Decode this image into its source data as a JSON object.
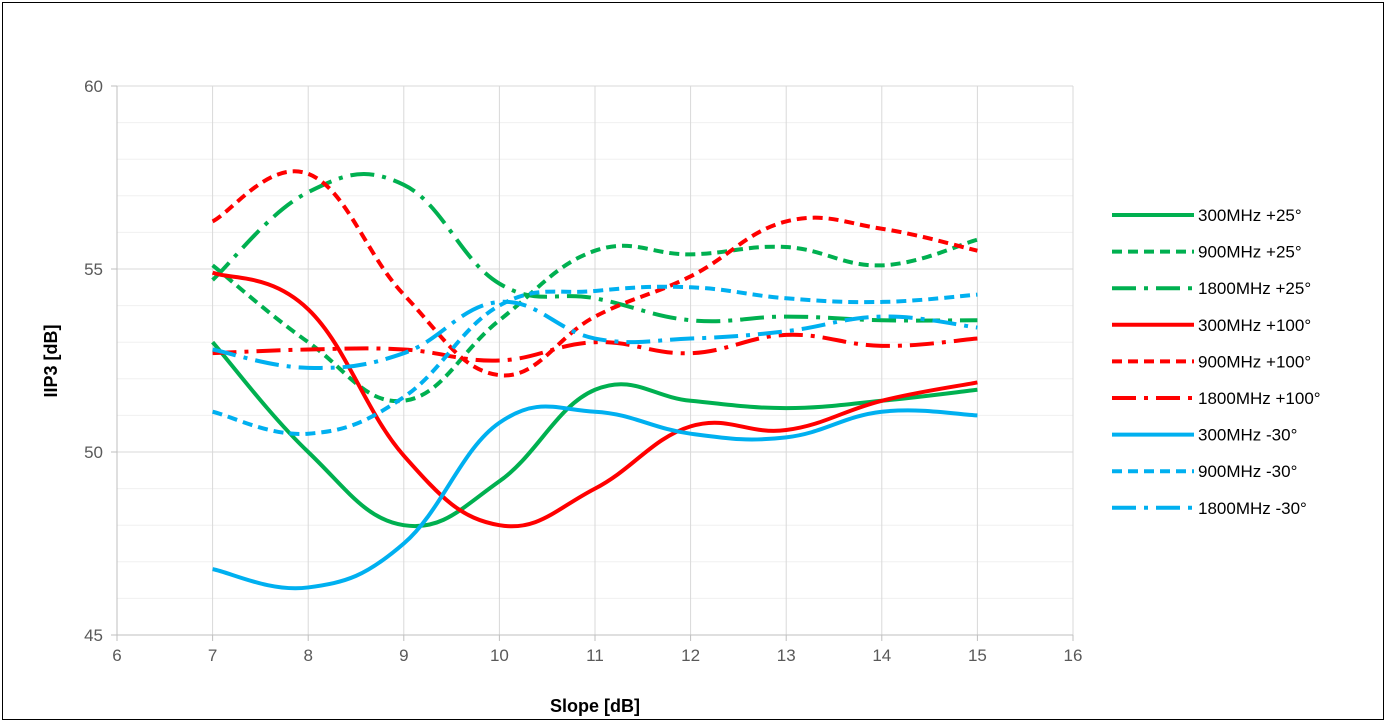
{
  "chart_data": {
    "type": "line",
    "title": "",
    "xlabel": "Slope [dB]",
    "ylabel": "IIP3 [dB]",
    "xlim": [
      6,
      16
    ],
    "ylim": [
      45,
      60
    ],
    "x_ticks": [
      6,
      7,
      8,
      9,
      10,
      11,
      12,
      13,
      14,
      15,
      16
    ],
    "y_ticks": [
      45,
      50,
      55,
      60
    ],
    "grid": true,
    "legend_position": "right",
    "x": [
      7,
      8,
      9,
      10,
      11,
      12,
      13,
      14,
      15
    ],
    "series": [
      {
        "name": "300MHz +25°",
        "color": "#00B050",
        "dash": "solid",
        "values": [
          53.0,
          50.0,
          48.0,
          49.2,
          51.7,
          51.4,
          51.2,
          51.4,
          51.7
        ]
      },
      {
        "name": "900MHz +25°",
        "color": "#00B050",
        "dash": "dash",
        "values": [
          55.1,
          53.0,
          51.4,
          53.6,
          55.5,
          55.4,
          55.6,
          55.1,
          55.8
        ]
      },
      {
        "name": "1800MHz +25°",
        "color": "#00B050",
        "dash": "longdash",
        "values": [
          54.7,
          57.1,
          57.3,
          54.6,
          54.2,
          53.6,
          53.7,
          53.6,
          53.6
        ]
      },
      {
        "name": "300MHz +100°",
        "color": "#FF0000",
        "dash": "solid",
        "values": [
          54.9,
          53.9,
          49.9,
          48.0,
          49.0,
          50.7,
          50.6,
          51.4,
          51.9
        ]
      },
      {
        "name": "900MHz +100°",
        "color": "#FF0000",
        "dash": "dash",
        "values": [
          56.3,
          57.6,
          54.3,
          52.1,
          53.7,
          54.8,
          56.3,
          56.1,
          55.5
        ]
      },
      {
        "name": "1800MHz +100°",
        "color": "#FF0000",
        "dash": "longdash",
        "values": [
          52.7,
          52.8,
          52.8,
          52.5,
          53.0,
          52.7,
          53.2,
          52.9,
          53.1
        ]
      },
      {
        "name": "300MHz -30°",
        "color": "#00B0F0",
        "dash": "solid",
        "values": [
          46.8,
          46.3,
          47.5,
          50.8,
          51.1,
          50.5,
          50.4,
          51.1,
          51.0
        ]
      },
      {
        "name": "900MHz -30°",
        "color": "#00B0F0",
        "dash": "dash",
        "values": [
          51.1,
          50.5,
          51.5,
          54.0,
          54.4,
          54.5,
          54.2,
          54.1,
          54.3
        ]
      },
      {
        "name": "1800MHz -30°",
        "color": "#00B0F0",
        "dash": "longdash",
        "values": [
          52.8,
          52.3,
          52.7,
          54.1,
          53.1,
          53.1,
          53.3,
          53.7,
          53.4
        ]
      }
    ]
  }
}
